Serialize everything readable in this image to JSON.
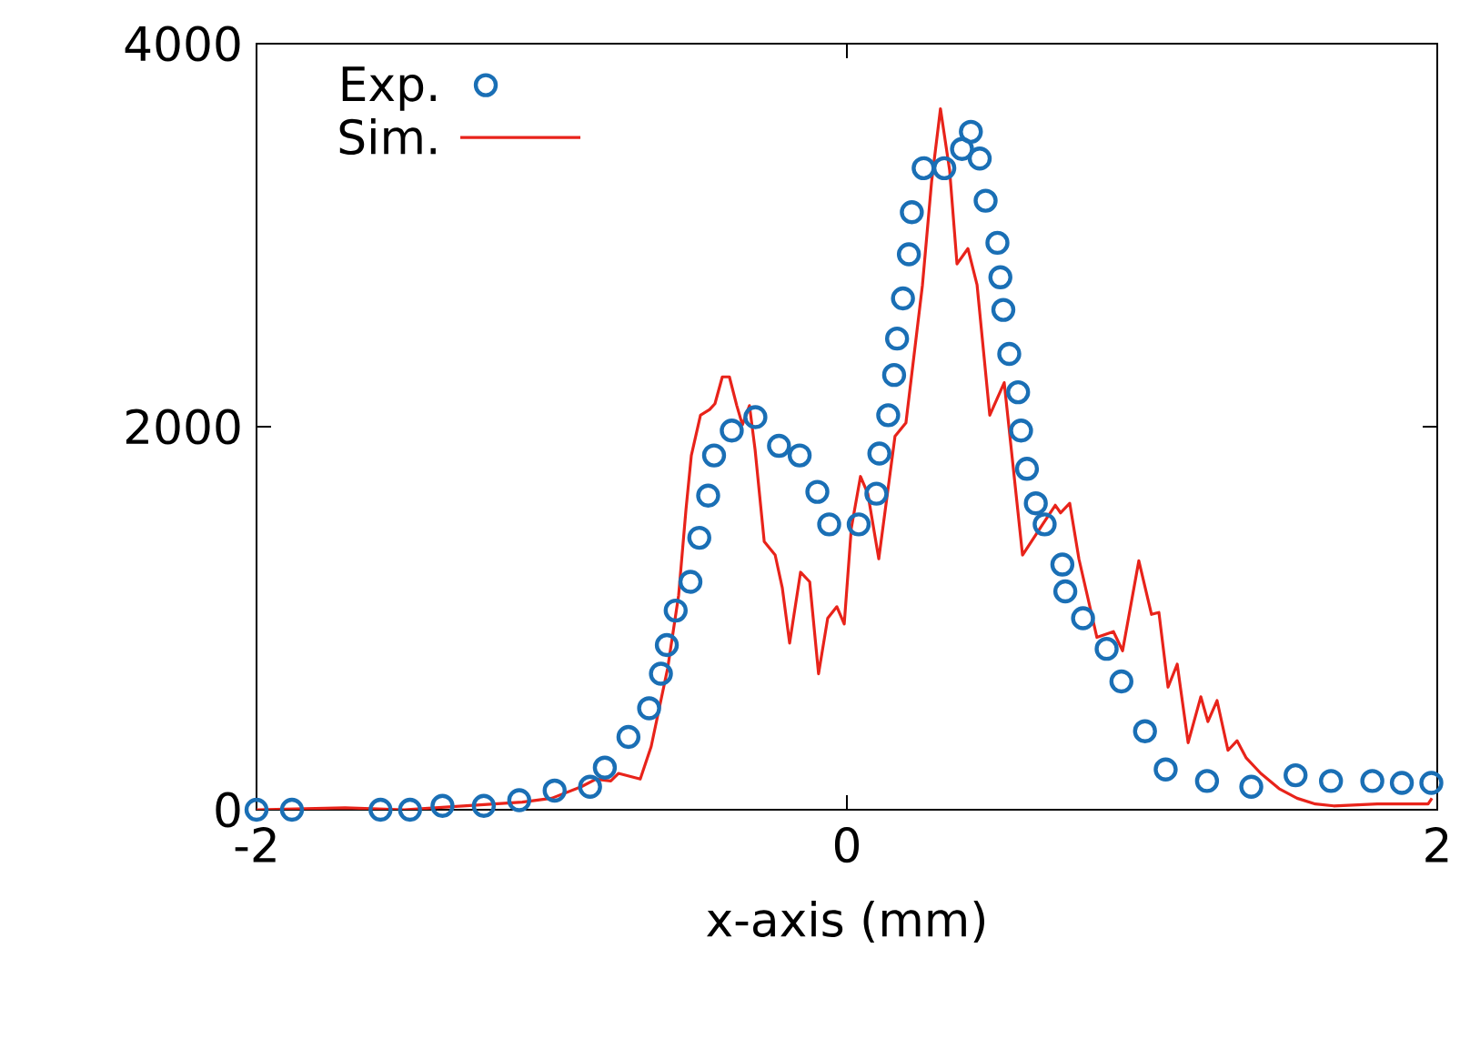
{
  "chart_data": {
    "type": "scatter",
    "xlabel": "x-axis (mm)",
    "xlim": [
      -2,
      2
    ],
    "ylim": [
      0,
      4000
    ],
    "xticks": [
      -2,
      0,
      2
    ],
    "yticks": [
      0,
      2000,
      4000
    ],
    "grid": false,
    "legend": "top left",
    "series": [
      {
        "name": "Exp.",
        "marker": "circle",
        "color": "#1a6fb5",
        "x": [
          -2,
          -1.88,
          -1.58,
          -1.48,
          -1.37,
          -1.23,
          -1.11,
          -0.99,
          -0.87,
          -0.82,
          -0.74,
          -0.67,
          -0.63,
          -0.61,
          -0.58,
          -0.53,
          -0.5,
          -0.47,
          -0.45,
          -0.39,
          -0.31,
          -0.23,
          -0.16,
          -0.1,
          -0.06,
          0.04,
          0.1,
          0.11,
          0.14,
          0.16,
          0.17,
          0.19,
          0.21,
          0.22,
          0.26,
          0.33,
          0.39,
          0.42,
          0.45,
          0.47,
          0.51,
          0.52,
          0.53,
          0.55,
          0.58,
          0.59,
          0.61,
          0.64,
          0.67,
          0.73,
          0.74,
          0.8,
          0.88,
          0.93,
          1.01,
          1.08,
          1.22,
          1.37,
          1.52,
          1.64,
          1.78,
          1.88,
          1.98
        ],
        "values": [
          0,
          0,
          0,
          0,
          20,
          20,
          50,
          100,
          120,
          220,
          380,
          530,
          710,
          860,
          1040,
          1190,
          1420,
          1640,
          1850,
          1980,
          2050,
          1900,
          1850,
          1660,
          1490,
          1490,
          1650,
          1860,
          2060,
          2270,
          2460,
          2670,
          2900,
          3120,
          3350,
          3350,
          3450,
          3540,
          3400,
          3180,
          2960,
          2780,
          2610,
          2380,
          2180,
          1980,
          1780,
          1600,
          1490,
          1280,
          1140,
          1000,
          840,
          670,
          410,
          210,
          150,
          120,
          180,
          150,
          150,
          140,
          140
        ]
      },
      {
        "name": "Sim.",
        "type": "line",
        "marker": "none",
        "line_style": "solid",
        "color": "#e8231a",
        "x": [
          -2,
          -1.7,
          -1.5,
          -1.3,
          -1.1,
          -1.0,
          -0.9,
          -0.85,
          -0.8,
          -0.774,
          -0.7,
          -0.663,
          -0.607,
          -0.57,
          -0.545,
          -0.527,
          -0.496,
          -0.465,
          -0.447,
          -0.422,
          -0.398,
          -0.373,
          -0.354,
          -0.33,
          -0.311,
          -0.28,
          -0.243,
          -0.219,
          -0.194,
          -0.157,
          -0.126,
          -0.096,
          -0.065,
          -0.034,
          -0.009,
          0.015,
          0.046,
          0.071,
          0.108,
          0.163,
          0.2,
          0.256,
          0.287,
          0.317,
          0.348,
          0.373,
          0.41,
          0.441,
          0.484,
          0.533,
          0.595,
          0.663,
          0.706,
          0.724,
          0.755,
          0.786,
          0.847,
          0.903,
          0.934,
          0.989,
          1.032,
          1.057,
          1.088,
          1.119,
          1.156,
          1.199,
          1.223,
          1.254,
          1.291,
          1.322,
          1.353,
          1.402,
          1.464,
          1.525,
          1.587,
          1.649,
          1.797,
          1.969,
          1.982
        ],
        "values": [
          0,
          10,
          0,
          20,
          40,
          60,
          120,
          160,
          150,
          190,
          160,
          330,
          740,
          1120,
          1570,
          1850,
          2060,
          2090,
          2120,
          2260,
          2260,
          2110,
          2010,
          2110,
          1880,
          1400,
          1330,
          1160,
          870,
          1240,
          1190,
          710,
          1000,
          1060,
          970,
          1470,
          1740,
          1650,
          1310,
          1950,
          2020,
          2740,
          3280,
          3660,
          3340,
          2850,
          2930,
          2740,
          2060,
          2230,
          1330,
          1490,
          1590,
          1550,
          1600,
          1310,
          900,
          930,
          830,
          1300,
          1020,
          1030,
          640,
          760,
          350,
          590,
          460,
          570,
          310,
          360,
          270,
          190,
          110,
          60,
          30,
          20,
          30,
          30,
          60
        ]
      }
    ]
  }
}
